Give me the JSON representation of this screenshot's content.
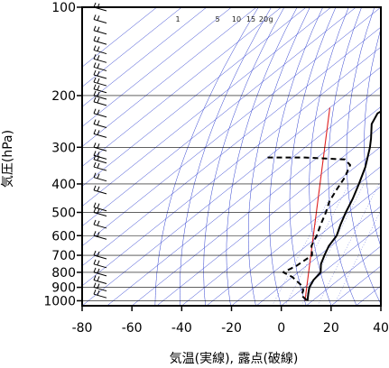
{
  "chart_data": {
    "type": "skew-t",
    "xlabel": "気温(実線), 露点(破線)",
    "ylabel": "気圧(hPa)",
    "xlim": [
      -80,
      40
    ],
    "ylim_pressure_hPa": [
      1040,
      100
    ],
    "y_scale": "log",
    "x_ticks": [
      "-80",
      "-60",
      "-40",
      "-20",
      "0",
      "20",
      "40"
    ],
    "y_ticks": [
      "100",
      "200",
      "300",
      "400",
      "500",
      "600",
      "700",
      "800",
      "900",
      "1000"
    ],
    "mixing_ratio_labels": [
      "1",
      "5",
      "10",
      "15",
      "20",
      "g"
    ],
    "colors": {
      "frame": "#000000",
      "adiabats": "#3040d0",
      "reference_line": "#e02020",
      "temperature": "#000000",
      "dewpoint": "#000000",
      "grid": "#000000",
      "wind_barbs": "#000000"
    },
    "series": [
      {
        "type": "temperature",
        "style": "solid",
        "points": [
          {
            "p": 100,
            "t": -57
          },
          {
            "p": 105,
            "t": -58
          },
          {
            "p": 112,
            "t": -60
          },
          {
            "p": 120,
            "t": -61
          },
          {
            "p": 130,
            "t": -62
          },
          {
            "p": 140,
            "t": -60
          },
          {
            "p": 150,
            "t": -58
          },
          {
            "p": 160,
            "t": -56
          },
          {
            "p": 170,
            "t": -54
          },
          {
            "p": 180,
            "t": -52
          },
          {
            "p": 190,
            "t": -50
          },
          {
            "p": 200,
            "t": -50
          },
          {
            "p": 210,
            "t": -51
          },
          {
            "p": 220,
            "t": -57
          },
          {
            "p": 230,
            "t": -58
          },
          {
            "p": 250,
            "t": -55
          },
          {
            "p": 280,
            "t": -48
          },
          {
            "p": 300,
            "t": -44
          },
          {
            "p": 350,
            "t": -36
          },
          {
            "p": 400,
            "t": -30
          },
          {
            "p": 450,
            "t": -25
          },
          {
            "p": 500,
            "t": -21
          },
          {
            "p": 550,
            "t": -17
          },
          {
            "p": 600,
            "t": -13
          },
          {
            "p": 650,
            "t": -11
          },
          {
            "p": 700,
            "t": -8
          },
          {
            "p": 750,
            "t": -5
          },
          {
            "p": 800,
            "t": -1
          },
          {
            "p": 850,
            "t": 0
          },
          {
            "p": 900,
            "t": 2
          },
          {
            "p": 950,
            "t": 5
          },
          {
            "p": 1000,
            "t": 8
          }
        ]
      },
      {
        "type": "dewpoint",
        "style": "dashed",
        "points": [
          {
            "p": 325,
            "t": -80
          },
          {
            "p": 325,
            "t": -65
          },
          {
            "p": 330,
            "t": -48
          },
          {
            "p": 345,
            "t": -43
          },
          {
            "p": 380,
            "t": -39
          },
          {
            "p": 420,
            "t": -36
          },
          {
            "p": 460,
            "t": -33
          },
          {
            "p": 500,
            "t": -29
          },
          {
            "p": 550,
            "t": -25
          },
          {
            "p": 600,
            "t": -21
          },
          {
            "p": 650,
            "t": -18
          },
          {
            "p": 700,
            "t": -13
          },
          {
            "p": 760,
            "t": -14
          },
          {
            "p": 800,
            "t": -16
          },
          {
            "p": 830,
            "t": -10
          },
          {
            "p": 880,
            "t": -3
          },
          {
            "p": 920,
            "t": 1
          },
          {
            "p": 960,
            "t": 3
          },
          {
            "p": 1000,
            "t": 8
          }
        ]
      }
    ],
    "reference_line": [
      {
        "p": 220,
        "t": -80
      },
      {
        "p": 1000,
        "t": 7
      }
    ],
    "wind_barbs_p": [
      100,
      110,
      120,
      130,
      140,
      150,
      160,
      170,
      180,
      190,
      200,
      210,
      230,
      250,
      270,
      300,
      320,
      330,
      350,
      380,
      420,
      480,
      500,
      550,
      600,
      700,
      750,
      800,
      850,
      900,
      950
    ]
  }
}
